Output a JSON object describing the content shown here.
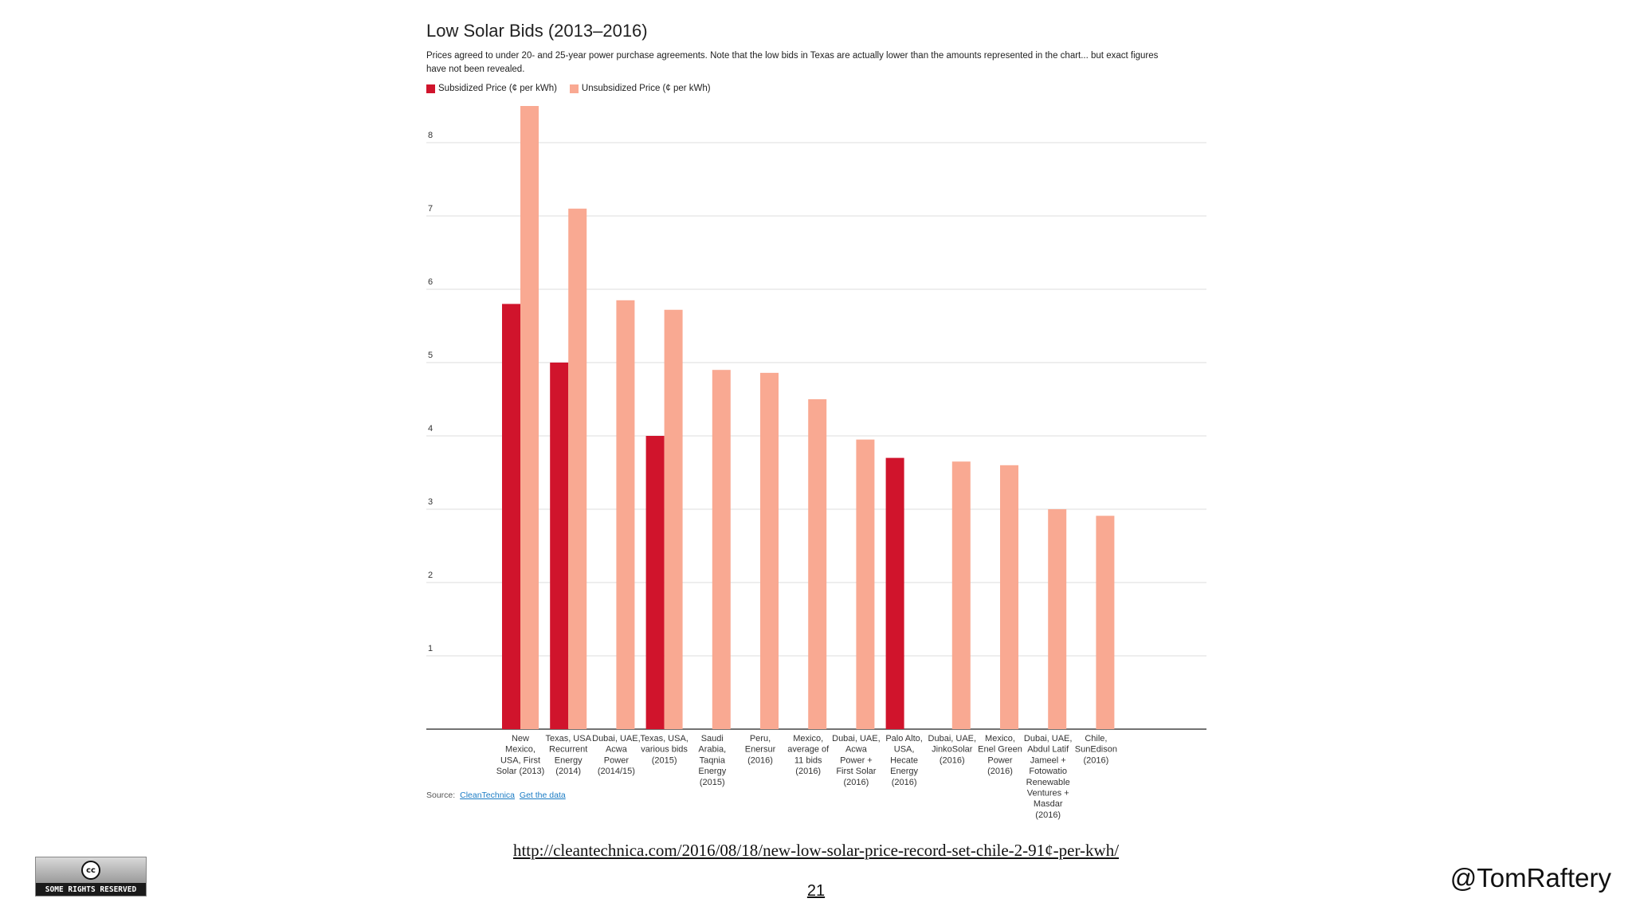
{
  "chart_data": {
    "type": "bar",
    "title": "Low Solar Bids (2013–2016)",
    "subtitle_line1": "Prices agreed to under 20- and 25-year power purchase agreements. Note that the low bids in Texas are actually lower than the amounts represented in the chart... but exact figures",
    "subtitle_line2": "have not been revealed.",
    "ylim": [
      0,
      8.5
    ],
    "yticks": [
      1,
      2,
      3,
      4,
      5,
      6,
      7,
      8
    ],
    "grid": true,
    "legend_placement": "top-left",
    "categories": [
      [
        "New",
        "Mexico,",
        "USA, First",
        "Solar (2013)"
      ],
      [
        "Texas, USA",
        "Recurrent",
        "Energy",
        "(2014)"
      ],
      [
        "Dubai, UAE,",
        "Acwa",
        "Power",
        "(2014/15)"
      ],
      [
        "Texas, USA,",
        "various bids",
        "(2015)"
      ],
      [
        "Saudi",
        "Arabia,",
        "Taqnia",
        "Energy",
        "(2015)"
      ],
      [
        "Peru,",
        "Enersur",
        "(2016)"
      ],
      [
        "Mexico,",
        "average of",
        "11 bids",
        "(2016)"
      ],
      [
        "Dubai, UAE,",
        "Acwa",
        "Power +",
        "First Solar",
        "(2016)"
      ],
      [
        "Palo Alto,",
        "USA,",
        "Hecate",
        "Energy",
        "(2016)"
      ],
      [
        "Dubai, UAE,",
        "JinkoSolar",
        "(2016)"
      ],
      [
        "Mexico,",
        "Enel Green",
        "Power",
        "(2016)"
      ],
      [
        "Dubai, UAE,",
        "Abdul Latif",
        "Jameel +",
        "Fotowatio",
        "Renewable",
        "Ventures +",
        "Masdar",
        "(2016)"
      ],
      [
        "Chile,",
        "SunEdison",
        "(2016)"
      ]
    ],
    "series": [
      {
        "name": "Subsidized Price (¢ per kWh)",
        "color": "#d0142c",
        "values": [
          5.8,
          5.0,
          null,
          4.0,
          null,
          null,
          null,
          null,
          3.7,
          null,
          null,
          null,
          null
        ]
      },
      {
        "name": "Unsubsidized Price (¢ per kWh)",
        "color": "#f9a992",
        "values": [
          8.5,
          7.1,
          5.85,
          5.72,
          4.9,
          4.86,
          4.5,
          3.95,
          null,
          3.65,
          3.6,
          3.0,
          2.91
        ]
      }
    ]
  },
  "source": {
    "label": "Source:",
    "link1": "CleanTechnica",
    "link2": "Get the data"
  },
  "footer": {
    "url": "http://cleantechnica.com/2016/08/18/new-low-solar-price-record-set-chile-2-91¢-per-kwh/",
    "page_number": "21",
    "author": "@TomRaftery",
    "cc_text": "SOME RIGHTS RESERVED",
    "cc_symbol": "cc"
  }
}
